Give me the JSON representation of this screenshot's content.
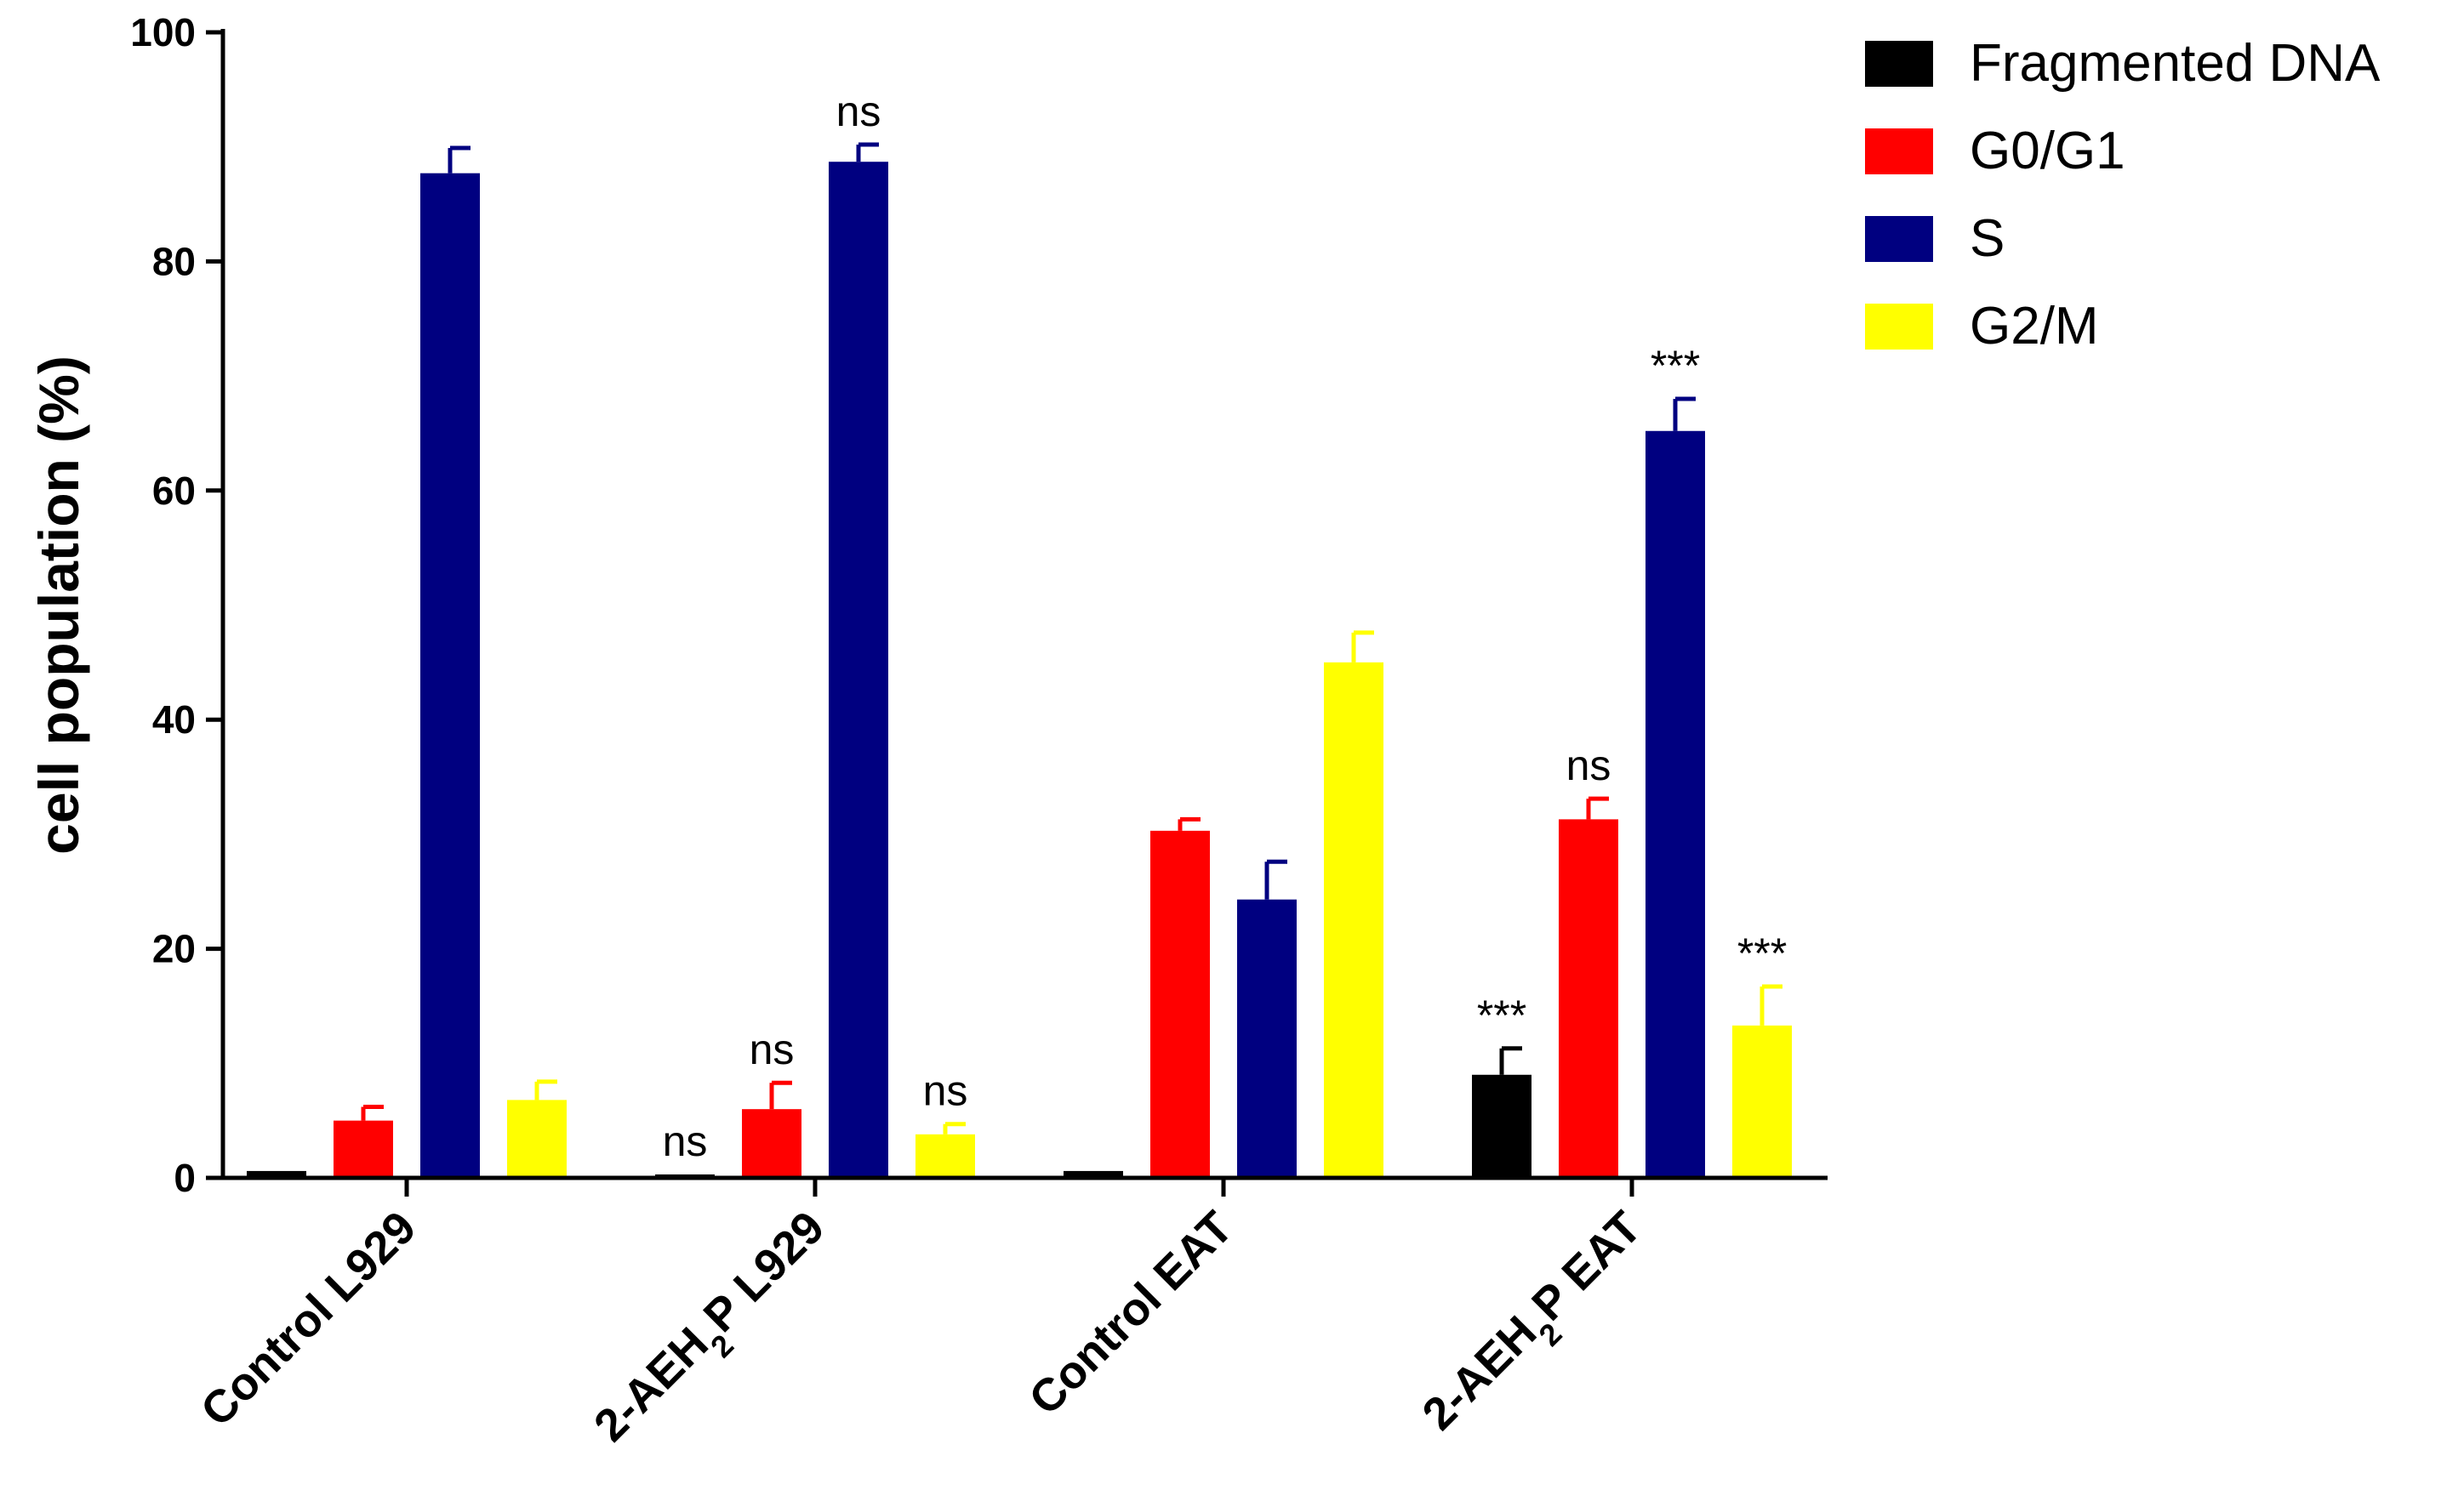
{
  "chart_data": {
    "type": "bar",
    "ylabel": "cell population (%)",
    "xlabel": "",
    "title": "",
    "ylim": [
      0,
      100
    ],
    "yticks": [
      0,
      20,
      40,
      60,
      80,
      100
    ],
    "legend_position": "top-right",
    "grid": false,
    "categories": [
      {
        "parts": [
          {
            "t": "Control L929"
          }
        ]
      },
      {
        "parts": [
          {
            "t": "2-AEH"
          },
          {
            "t": "2",
            "sub": true
          },
          {
            "t": "P L929"
          }
        ]
      },
      {
        "parts": [
          {
            "t": "Control EAT"
          }
        ]
      },
      {
        "parts": [
          {
            "t": "2-AEH"
          },
          {
            "t": "2",
            "sub": true
          },
          {
            "t": "P EAT"
          }
        ]
      }
    ],
    "series": [
      {
        "name": "Fragmented DNA",
        "color": "#000000",
        "values": [
          0.6,
          0.3,
          0.6,
          9.0
        ],
        "errors": [
          0.0,
          0.0,
          0.0,
          2.3
        ],
        "annotations": [
          "",
          "ns",
          "",
          "***"
        ]
      },
      {
        "name": "G0/G1",
        "color": "#ff0000",
        "values": [
          5.0,
          6.0,
          30.3,
          31.3
        ],
        "errors": [
          1.2,
          2.3,
          1.0,
          1.8
        ],
        "annotations": [
          "",
          "ns",
          "",
          "ns"
        ]
      },
      {
        "name": "S",
        "color": "#000080",
        "values": [
          87.7,
          88.7,
          24.3,
          65.2
        ],
        "errors": [
          2.2,
          1.5,
          3.3,
          2.8
        ],
        "annotations": [
          "",
          "ns",
          "",
          "***"
        ]
      },
      {
        "name": "G2/M",
        "color": "#ffff00",
        "values": [
          6.8,
          3.8,
          45.0,
          13.3
        ],
        "errors": [
          1.6,
          0.9,
          2.6,
          3.4
        ],
        "annotations": [
          "",
          "ns",
          "",
          "***"
        ]
      }
    ]
  }
}
